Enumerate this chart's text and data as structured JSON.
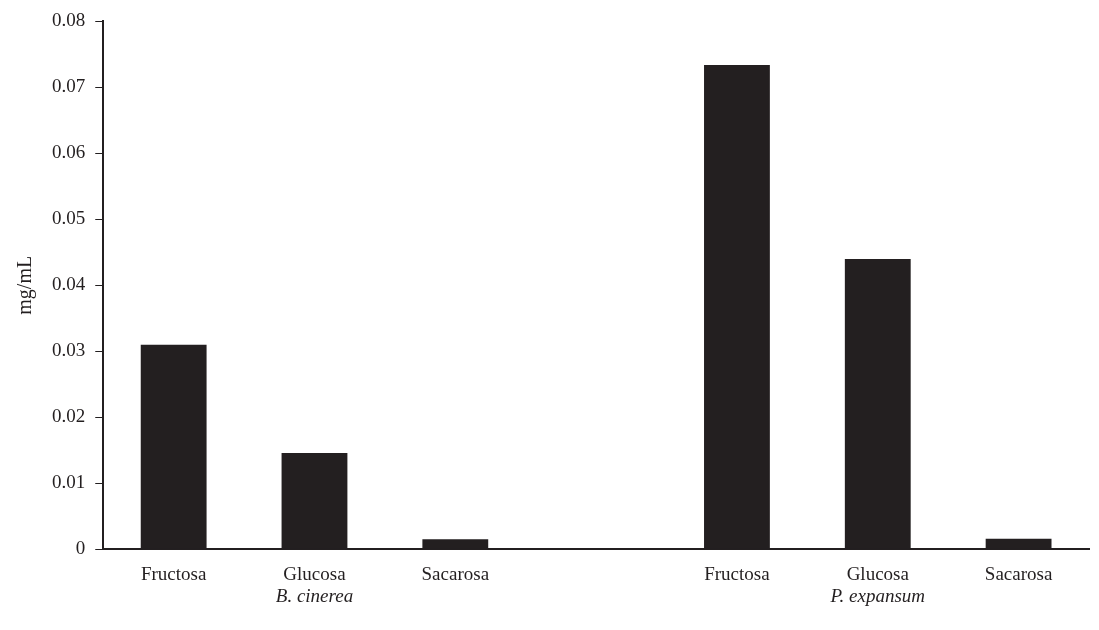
{
  "chart_data": {
    "type": "bar",
    "ylabel": "mg/mL",
    "categories": [
      "Fructosa",
      "Glucosa",
      "Sacarosa",
      null,
      "Fructosa",
      "Glucosa",
      "Sacarosa"
    ],
    "values": [
      0.031,
      0.0146,
      0.0015,
      null,
      0.0734,
      0.044,
      0.0016
    ],
    "color": "#231f20",
    "ylim": [
      0,
      0.08
    ],
    "yticks": [
      0,
      0.01,
      0.02,
      0.03,
      0.04,
      0.05,
      0.06,
      0.07,
      0.08
    ],
    "grid": false,
    "legend": false,
    "annotations": [
      "B. cinerea",
      "P. expansum"
    ]
  }
}
